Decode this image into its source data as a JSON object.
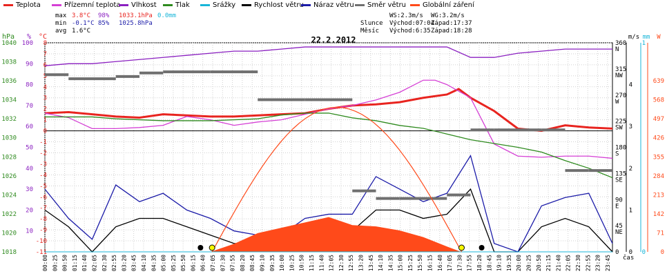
{
  "legend": [
    {
      "label": "Teplota",
      "color": "#e8241f"
    },
    {
      "label": "Přízemní teplota",
      "color": "#d540d5"
    },
    {
      "label": "Vlhkost",
      "color": "#8a1fc0"
    },
    {
      "label": "Tlak",
      "color": "#2e8a1e"
    },
    {
      "label": "Srážky",
      "color": "#17b5d8"
    },
    {
      "label": "Rychlost větru",
      "color": "#000000"
    },
    {
      "label": "Náraz větru",
      "color": "#1b1ba8"
    },
    {
      "label": "Směr větru",
      "color": "#6f6f6f"
    },
    {
      "label": "Globální záření",
      "color": "#ff4a1a"
    }
  ],
  "stats": {
    "max_label": "max",
    "max_temp": "3.8°C",
    "max_hum": "98%",
    "max_press": "1033.1hPa",
    "precip": "0.0mm",
    "min_label": "min",
    "min_temp": "-0.1°C",
    "min_hum": "85%",
    "min_press": "1025.8hPa",
    "avg_label": "avg",
    "avg_temp": "1.6°C"
  },
  "astro": {
    "ws": "WS:2.3m/s",
    "wg": "WG:3.2m/s",
    "sun_label": "Slunce",
    "sun_rise": "Východ:07:04",
    "sun_set": "Západ:17:37",
    "moon_label": "Měsíc",
    "moon_rise": "Východ:6:35",
    "moon_set": "Západ:18:28"
  },
  "chart_data": {
    "type": "line",
    "title": "22.2.2012",
    "xlabel": "čas",
    "x_ticks": [
      "00:00",
      "00:25",
      "00:50",
      "01:15",
      "01:40",
      "02:05",
      "02:30",
      "02:55",
      "03:20",
      "03:45",
      "04:10",
      "04:35",
      "05:00",
      "05:25",
      "05:50",
      "06:15",
      "06:40",
      "07:05",
      "07:30",
      "07:55",
      "08:20",
      "08:45",
      "09:10",
      "09:35",
      "10:00",
      "10:25",
      "10:50",
      "11:15",
      "11:40",
      "12:05",
      "12:30",
      "12:55",
      "13:20",
      "13:45",
      "14:10",
      "14:35",
      "15:00",
      "15:25",
      "15:50",
      "16:15",
      "16:40",
      "17:05",
      "17:30",
      "17:55",
      "18:20",
      "18:45",
      "19:10",
      "19:35",
      "20:00",
      "20:25",
      "20:50",
      "21:15",
      "21:40",
      "22:05",
      "22:30",
      "22:55",
      "23:20",
      "23:45"
    ],
    "axes": {
      "hPa": {
        "label": "hPa",
        "ticks": [
          "1040",
          "1038",
          "1036",
          "1034",
          "1032",
          "1030",
          "1028",
          "1026",
          "1024",
          "1022",
          "1020",
          "1018"
        ],
        "range": [
          1018,
          1040
        ]
      },
      "percent": {
        "label": "%",
        "ticks": [
          "100",
          "90",
          "80",
          "70",
          "60",
          "50",
          "40",
          "30",
          "20",
          "10"
        ],
        "range": [
          0,
          100
        ]
      },
      "celsius": {
        "label": "°C",
        "ticks": [
          "8",
          "7",
          "6",
          "5",
          "4",
          "3",
          "2",
          "1",
          "0",
          "-1",
          "-2",
          "-3",
          "-4",
          "-5",
          "-6",
          "-7",
          "-8",
          "-9",
          "-10",
          "-11"
        ],
        "range": [
          -11,
          8
        ]
      },
      "ms": {
        "label": "m/s",
        "ticks": [
          "4",
          "3",
          "2",
          "1",
          "0"
        ],
        "range": [
          0,
          5
        ]
      },
      "mm": {
        "label": "mm",
        "ticks": [
          "1",
          "0"
        ],
        "range": [
          0,
          1
        ]
      },
      "W": {
        "label": "W",
        "ticks": [
          "639",
          "568",
          "497",
          "426",
          "355",
          "284",
          "213",
          "142",
          "71",
          "0"
        ],
        "range": [
          0,
          781
        ]
      },
      "direction": {
        "ticks": [
          "360",
          "N",
          "315",
          "NW",
          "270",
          "W",
          "225",
          "SW",
          "180",
          "S",
          "135",
          "SE",
          "90",
          "E",
          "45",
          "NE",
          "0"
        ]
      }
    },
    "series": [
      {
        "name": "Teplota",
        "unit": "°C",
        "x": [
          0,
          1,
          2,
          3,
          4,
          5,
          6,
          7,
          8,
          9,
          10,
          11,
          12,
          13,
          14,
          15,
          16,
          17,
          17.5,
          18,
          19,
          20,
          21,
          22,
          23,
          24
        ],
        "values": [
          1.6,
          1.7,
          1.5,
          1.3,
          1.2,
          1.5,
          1.4,
          1.3,
          1.3,
          1.4,
          1.5,
          1.6,
          2.0,
          2.3,
          2.4,
          2.6,
          3.0,
          3.3,
          3.8,
          3.0,
          1.8,
          0.2,
          0.0,
          0.5,
          0.3,
          0.2
        ]
      },
      {
        "name": "Přízemní teplota",
        "unit": "°C",
        "x": [
          0,
          1,
          2,
          3,
          4,
          5,
          6,
          7,
          8,
          9,
          10,
          11,
          12,
          13,
          14,
          15,
          16,
          16.5,
          17,
          18,
          19,
          20,
          21,
          22,
          23,
          24
        ],
        "values": [
          1.6,
          1.2,
          0.2,
          0.2,
          0.3,
          0.5,
          1.3,
          1.0,
          0.5,
          0.8,
          1.0,
          1.5,
          2.0,
          2.3,
          2.8,
          3.5,
          4.6,
          4.6,
          4.2,
          3.0,
          -1.2,
          -2.3,
          -2.4,
          -2.3,
          -2.3,
          -2.5
        ]
      },
      {
        "name": "Vlhkost",
        "unit": "%",
        "x": [
          0,
          1,
          2,
          3,
          4,
          5,
          6,
          7,
          8,
          9,
          10,
          11,
          12,
          13,
          14,
          15,
          16,
          17,
          18,
          19,
          20,
          21,
          22,
          23,
          24
        ],
        "values": [
          89,
          90,
          90,
          91,
          92,
          93,
          94,
          95,
          96,
          96,
          97,
          98,
          98,
          98,
          98,
          98,
          98,
          98,
          93,
          93,
          95,
          96,
          97,
          97,
          97
        ]
      },
      {
        "name": "Tlak",
        "unit": "hPa",
        "x": [
          0,
          1,
          2,
          3,
          4,
          5,
          6,
          7,
          8,
          9,
          10,
          11,
          12,
          13,
          14,
          15,
          16,
          17,
          18,
          19,
          20,
          21,
          22,
          23,
          24
        ],
        "values": [
          1032.2,
          1032.2,
          1032.2,
          1032.0,
          1031.9,
          1031.8,
          1031.8,
          1031.8,
          1031.9,
          1032.0,
          1032.4,
          1032.6,
          1032.6,
          1032.1,
          1031.8,
          1031.3,
          1031.0,
          1030.4,
          1029.8,
          1029.4,
          1029.0,
          1028.5,
          1027.6,
          1026.8,
          1025.8
        ]
      },
      {
        "name": "Rychlost větru",
        "unit": "m/s",
        "x": [
          0,
          1,
          2,
          3,
          4,
          5,
          6,
          7,
          8,
          9,
          10,
          11,
          12,
          13,
          14,
          15,
          16,
          17,
          18,
          19,
          20,
          21,
          22,
          23,
          24
        ],
        "values": [
          1.0,
          0.6,
          0.0,
          0.6,
          0.8,
          0.8,
          0.6,
          0.4,
          0.2,
          0.2,
          0.2,
          0.5,
          0.5,
          0.5,
          1.0,
          1.0,
          0.8,
          0.9,
          1.5,
          0.0,
          0.0,
          0.6,
          0.8,
          0.6,
          0.0
        ]
      },
      {
        "name": "Náraz větru",
        "unit": "m/s",
        "x": [
          0,
          1,
          2,
          3,
          4,
          5,
          6,
          7,
          8,
          9,
          10,
          11,
          12,
          13,
          14,
          15,
          16,
          17,
          18,
          19,
          20,
          21,
          22,
          23,
          24
        ],
        "values": [
          1.5,
          0.8,
          0.3,
          1.6,
          1.2,
          1.4,
          1.0,
          0.8,
          0.5,
          0.4,
          0.4,
          0.8,
          0.9,
          0.9,
          1.8,
          1.5,
          1.2,
          1.4,
          2.3,
          0.2,
          0.0,
          1.1,
          1.3,
          1.4,
          0.2
        ]
      },
      {
        "name": "Směr větru",
        "unit": "°",
        "x": [
          0,
          1,
          2,
          3,
          4,
          5,
          6,
          7,
          8,
          9,
          10,
          11,
          12,
          13,
          14,
          15,
          16,
          17,
          18,
          19,
          20,
          21,
          22,
          23,
          24
        ],
        "values": [
          305,
          298,
          298,
          302,
          308,
          310,
          310,
          310,
          310,
          262,
          262,
          262,
          262,
          105,
          92,
          92,
          92,
          98,
          210,
          210,
          210,
          210,
          140,
          140,
          140
        ]
      },
      {
        "name": "Globální záření",
        "unit": "W",
        "x": [
          7,
          8,
          9,
          10,
          11,
          12,
          13,
          14,
          15,
          16,
          17,
          17.6
        ],
        "values": [
          0,
          30,
          70,
          90,
          110,
          130,
          100,
          95,
          80,
          55,
          20,
          0
        ]
      },
      {
        "name": "Srážky",
        "unit": "mm",
        "x": [
          0,
          24
        ],
        "values": [
          0,
          0
        ]
      }
    ]
  }
}
